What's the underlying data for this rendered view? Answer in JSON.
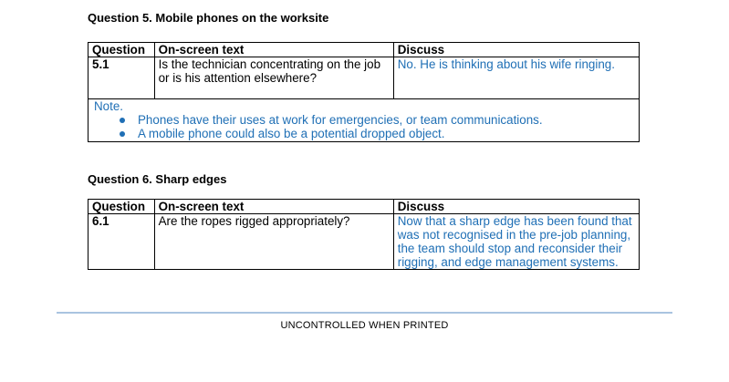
{
  "q5": {
    "heading": "Question 5. Mobile phones on the worksite",
    "headers": {
      "question": "Question",
      "onscreen": "On-screen text",
      "discuss": "Discuss"
    },
    "row": {
      "number": "5.1",
      "onscreen": "Is the technician concentrating on the job or is his attention elsewhere?",
      "discuss": "No. He is thinking about his wife ringing."
    },
    "note": {
      "title": "Note.",
      "items": [
        "Phones have their uses at work for emergencies, or team communications.",
        "A mobile phone could also be a potential dropped object."
      ]
    }
  },
  "q6": {
    "heading": "Question 6. Sharp edges",
    "headers": {
      "question": "Question",
      "onscreen": "On-screen text",
      "discuss": "Discuss"
    },
    "row": {
      "number": "6.1",
      "onscreen": "Are the ropes rigged appropriately?",
      "discuss": "Now that a sharp edge has been found that was not recognised in the pre-job planning, the team should stop and reconsider their rigging, and edge management systems."
    }
  },
  "footer": {
    "text": "UNCONTROLLED WHEN PRINTED"
  },
  "colors": {
    "discuss_text": "#1f6fb5",
    "footer_rule": "#a9c4e0"
  }
}
